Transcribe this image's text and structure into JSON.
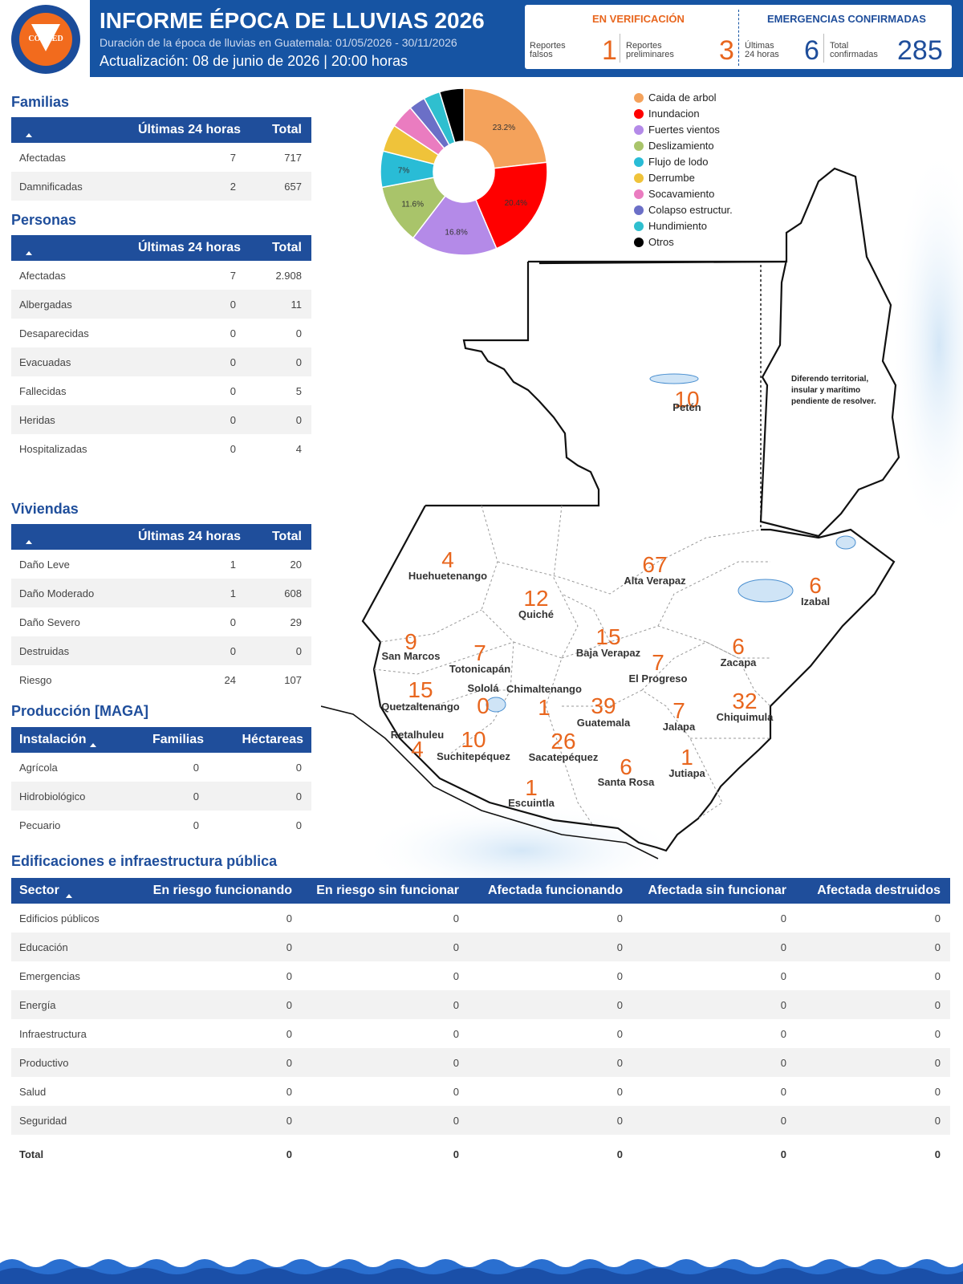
{
  "header": {
    "logo_text": "CONRED",
    "title": "INFORME ÉPOCA DE LLUVIAS 2026",
    "subtitle": "Duración de la época de lluvias en Guatemala: 01/05/2026 - 30/11/2026",
    "update": "Actualización: 08 de junio de 2026 | 20:00 horas"
  },
  "stats": {
    "verification_title": "EN VERIFICACIÓN",
    "confirmed_title": "EMERGENCIAS CONFIRMADAS",
    "false_label_1": "Reportes",
    "false_label_2": "falsos",
    "false_value": "1",
    "prelim_label_1": "Reportes",
    "prelim_label_2": "preliminares",
    "prelim_value": "3",
    "last24_label_1": "Últimas",
    "last24_label_2": "24 horas",
    "last24_value": "6",
    "total_label_1": "Total",
    "total_label_2": "confirmadas",
    "total_value": "285"
  },
  "familias": {
    "title": "Familias",
    "col1": "Últimas 24 horas",
    "col2": "Total",
    "rows": [
      {
        "label": "Afectadas",
        "h24": "7",
        "total": "717"
      },
      {
        "label": "Damnificadas",
        "h24": "2",
        "total": "657"
      }
    ]
  },
  "personas": {
    "title": "Personas",
    "col1": "Últimas 24 horas",
    "col2": "Total",
    "rows": [
      {
        "label": "Afectadas",
        "h24": "7",
        "total": "2.908"
      },
      {
        "label": "Albergadas",
        "h24": "0",
        "total": "11"
      },
      {
        "label": "Desaparecidas",
        "h24": "0",
        "total": "0"
      },
      {
        "label": "Evacuadas",
        "h24": "0",
        "total": "0"
      },
      {
        "label": "Fallecidas",
        "h24": "0",
        "total": "5"
      },
      {
        "label": "Heridas",
        "h24": "0",
        "total": "0"
      },
      {
        "label": "Hospitalizadas",
        "h24": "0",
        "total": "4"
      }
    ]
  },
  "viviendas": {
    "title": "Viviendas",
    "col1": "Últimas 24 horas",
    "col2": "Total",
    "rows": [
      {
        "label": "Daño Leve",
        "h24": "1",
        "total": "20"
      },
      {
        "label": "Daño Moderado",
        "h24": "1",
        "total": "608"
      },
      {
        "label": "Daño Severo",
        "h24": "0",
        "total": "29"
      },
      {
        "label": "Destruidas",
        "h24": "0",
        "total": "0"
      },
      {
        "label": "Riesgo",
        "h24": "24",
        "total": "107"
      }
    ]
  },
  "produccion": {
    "title": "Producción [MAGA]",
    "col0": "Instalación",
    "col1": "Familias",
    "col2": "Héctareas",
    "rows": [
      {
        "label": "Agrícola",
        "fam": "0",
        "hec": "0"
      },
      {
        "label": "Hidrobiológico",
        "fam": "0",
        "hec": "0"
      },
      {
        "label": "Pecuario",
        "fam": "0",
        "hec": "0"
      }
    ]
  },
  "edificaciones": {
    "title": "Edificaciones e infraestructura pública",
    "cols": [
      "Sector",
      "En riesgo funcionando",
      "En riesgo sin funcionar",
      "Afectada funcionando",
      "Afectada sin funcionar",
      "Afectada destruidos"
    ],
    "rows": [
      {
        "label": "Edificios públicos",
        "v": [
          "0",
          "0",
          "0",
          "0",
          "0"
        ]
      },
      {
        "label": "Educación",
        "v": [
          "0",
          "0",
          "0",
          "0",
          "0"
        ]
      },
      {
        "label": "Emergencias",
        "v": [
          "0",
          "0",
          "0",
          "0",
          "0"
        ]
      },
      {
        "label": "Energía",
        "v": [
          "0",
          "0",
          "0",
          "0",
          "0"
        ]
      },
      {
        "label": "Infraestructura",
        "v": [
          "0",
          "0",
          "0",
          "0",
          "0"
        ]
      },
      {
        "label": "Productivo",
        "v": [
          "0",
          "0",
          "0",
          "0",
          "0"
        ]
      },
      {
        "label": "Salud",
        "v": [
          "0",
          "0",
          "0",
          "0",
          "0"
        ]
      },
      {
        "label": "Seguridad",
        "v": [
          "0",
          "0",
          "0",
          "0",
          "0"
        ]
      }
    ],
    "total": {
      "label": "Total",
      "v": [
        "0",
        "0",
        "0",
        "0",
        "0"
      ]
    }
  },
  "chart_data": {
    "type": "pie",
    "donut": true,
    "categories": [
      "Caida de arbol",
      "Inundacion",
      "Fuertes vientos",
      "Deslizamiento",
      "Flujo de lodo",
      "Derrumbe",
      "Socavamiento",
      "Colapso estructur.",
      "Hundimiento",
      "Otros"
    ],
    "values": [
      23.2,
      20.4,
      16.8,
      11.6,
      7.0,
      5.3,
      4.6,
      3.2,
      3.2,
      4.7
    ],
    "labels_shown": [
      "23.2%",
      "20.4%",
      "16.8%",
      "11.6%",
      "7%",
      "",
      "",
      "",
      "",
      ""
    ],
    "colors": [
      "#f4a25b",
      "#ff0000",
      "#b48ae8",
      "#a9c46a",
      "#29bcd6",
      "#efc33a",
      "#ea7cc0",
      "#6b6fc7",
      "#2fbfcf",
      "#000000"
    ],
    "legend_position": "right"
  },
  "map": {
    "departments": [
      {
        "name": "Petén",
        "value": "10"
      },
      {
        "name": "Huehuetenango",
        "value": "4"
      },
      {
        "name": "Alta Verapaz",
        "value": "67"
      },
      {
        "name": "Izabal",
        "value": "6"
      },
      {
        "name": "Quiché",
        "value": "12"
      },
      {
        "name": "San Marcos",
        "value": "9"
      },
      {
        "name": "Totonicapán",
        "value": "7"
      },
      {
        "name": "Baja Verapaz",
        "value": "15"
      },
      {
        "name": "El Progreso",
        "value": "7"
      },
      {
        "name": "Zacapa",
        "value": "6"
      },
      {
        "name": "Quetzaltenango",
        "value": "15"
      },
      {
        "name": "Sololá",
        "value": "0"
      },
      {
        "name": "Chimaltenango",
        "value": "1"
      },
      {
        "name": "Guatemala",
        "value": "39"
      },
      {
        "name": "Jalapa",
        "value": "7"
      },
      {
        "name": "Chiquimula",
        "value": "32"
      },
      {
        "name": "Retalhuleu",
        "value": "4"
      },
      {
        "name": "Suchitepéquez",
        "value": "10"
      },
      {
        "name": "Sacatepéquez",
        "value": "26"
      },
      {
        "name": "Santa Rosa",
        "value": "6"
      },
      {
        "name": "Jutiapa",
        "value": "1"
      },
      {
        "name": "Escuintla",
        "value": "1"
      }
    ],
    "note": "Diferendo territorial, insular y marítimo pendiente de resolver."
  }
}
